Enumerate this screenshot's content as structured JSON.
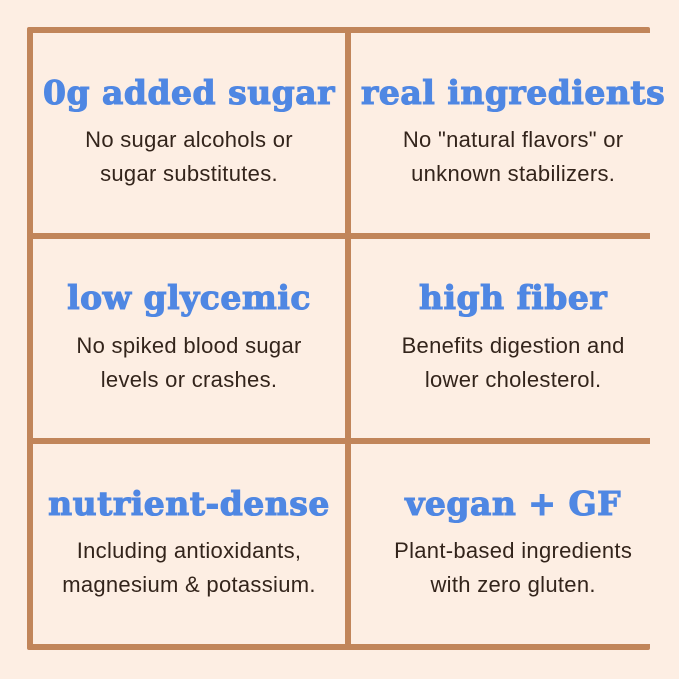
{
  "colors": {
    "background": "#fdeee3",
    "border": "#c1855a",
    "title": "#4f87e3",
    "body_text": "#33241b"
  },
  "grid": {
    "columns": 2,
    "rows": 3
  },
  "cells": [
    {
      "title": "0g added sugar",
      "lines": [
        "No sugar alcohols or",
        "sugar substitutes."
      ]
    },
    {
      "title": "real ingredients",
      "lines": [
        "No \"natural flavors\" or",
        "unknown stabilizers."
      ]
    },
    {
      "title": "low glycemic",
      "lines": [
        "No spiked blood sugar",
        "levels or crashes."
      ]
    },
    {
      "title": "high fiber",
      "lines": [
        "Benefits digestion and",
        "lower cholesterol."
      ]
    },
    {
      "title": "nutrient-dense",
      "lines": [
        "Including antioxidants,",
        "magnesium & potassium."
      ]
    },
    {
      "title": "vegan + GF",
      "lines": [
        "Plant-based ingredients",
        "with zero gluten."
      ]
    }
  ]
}
